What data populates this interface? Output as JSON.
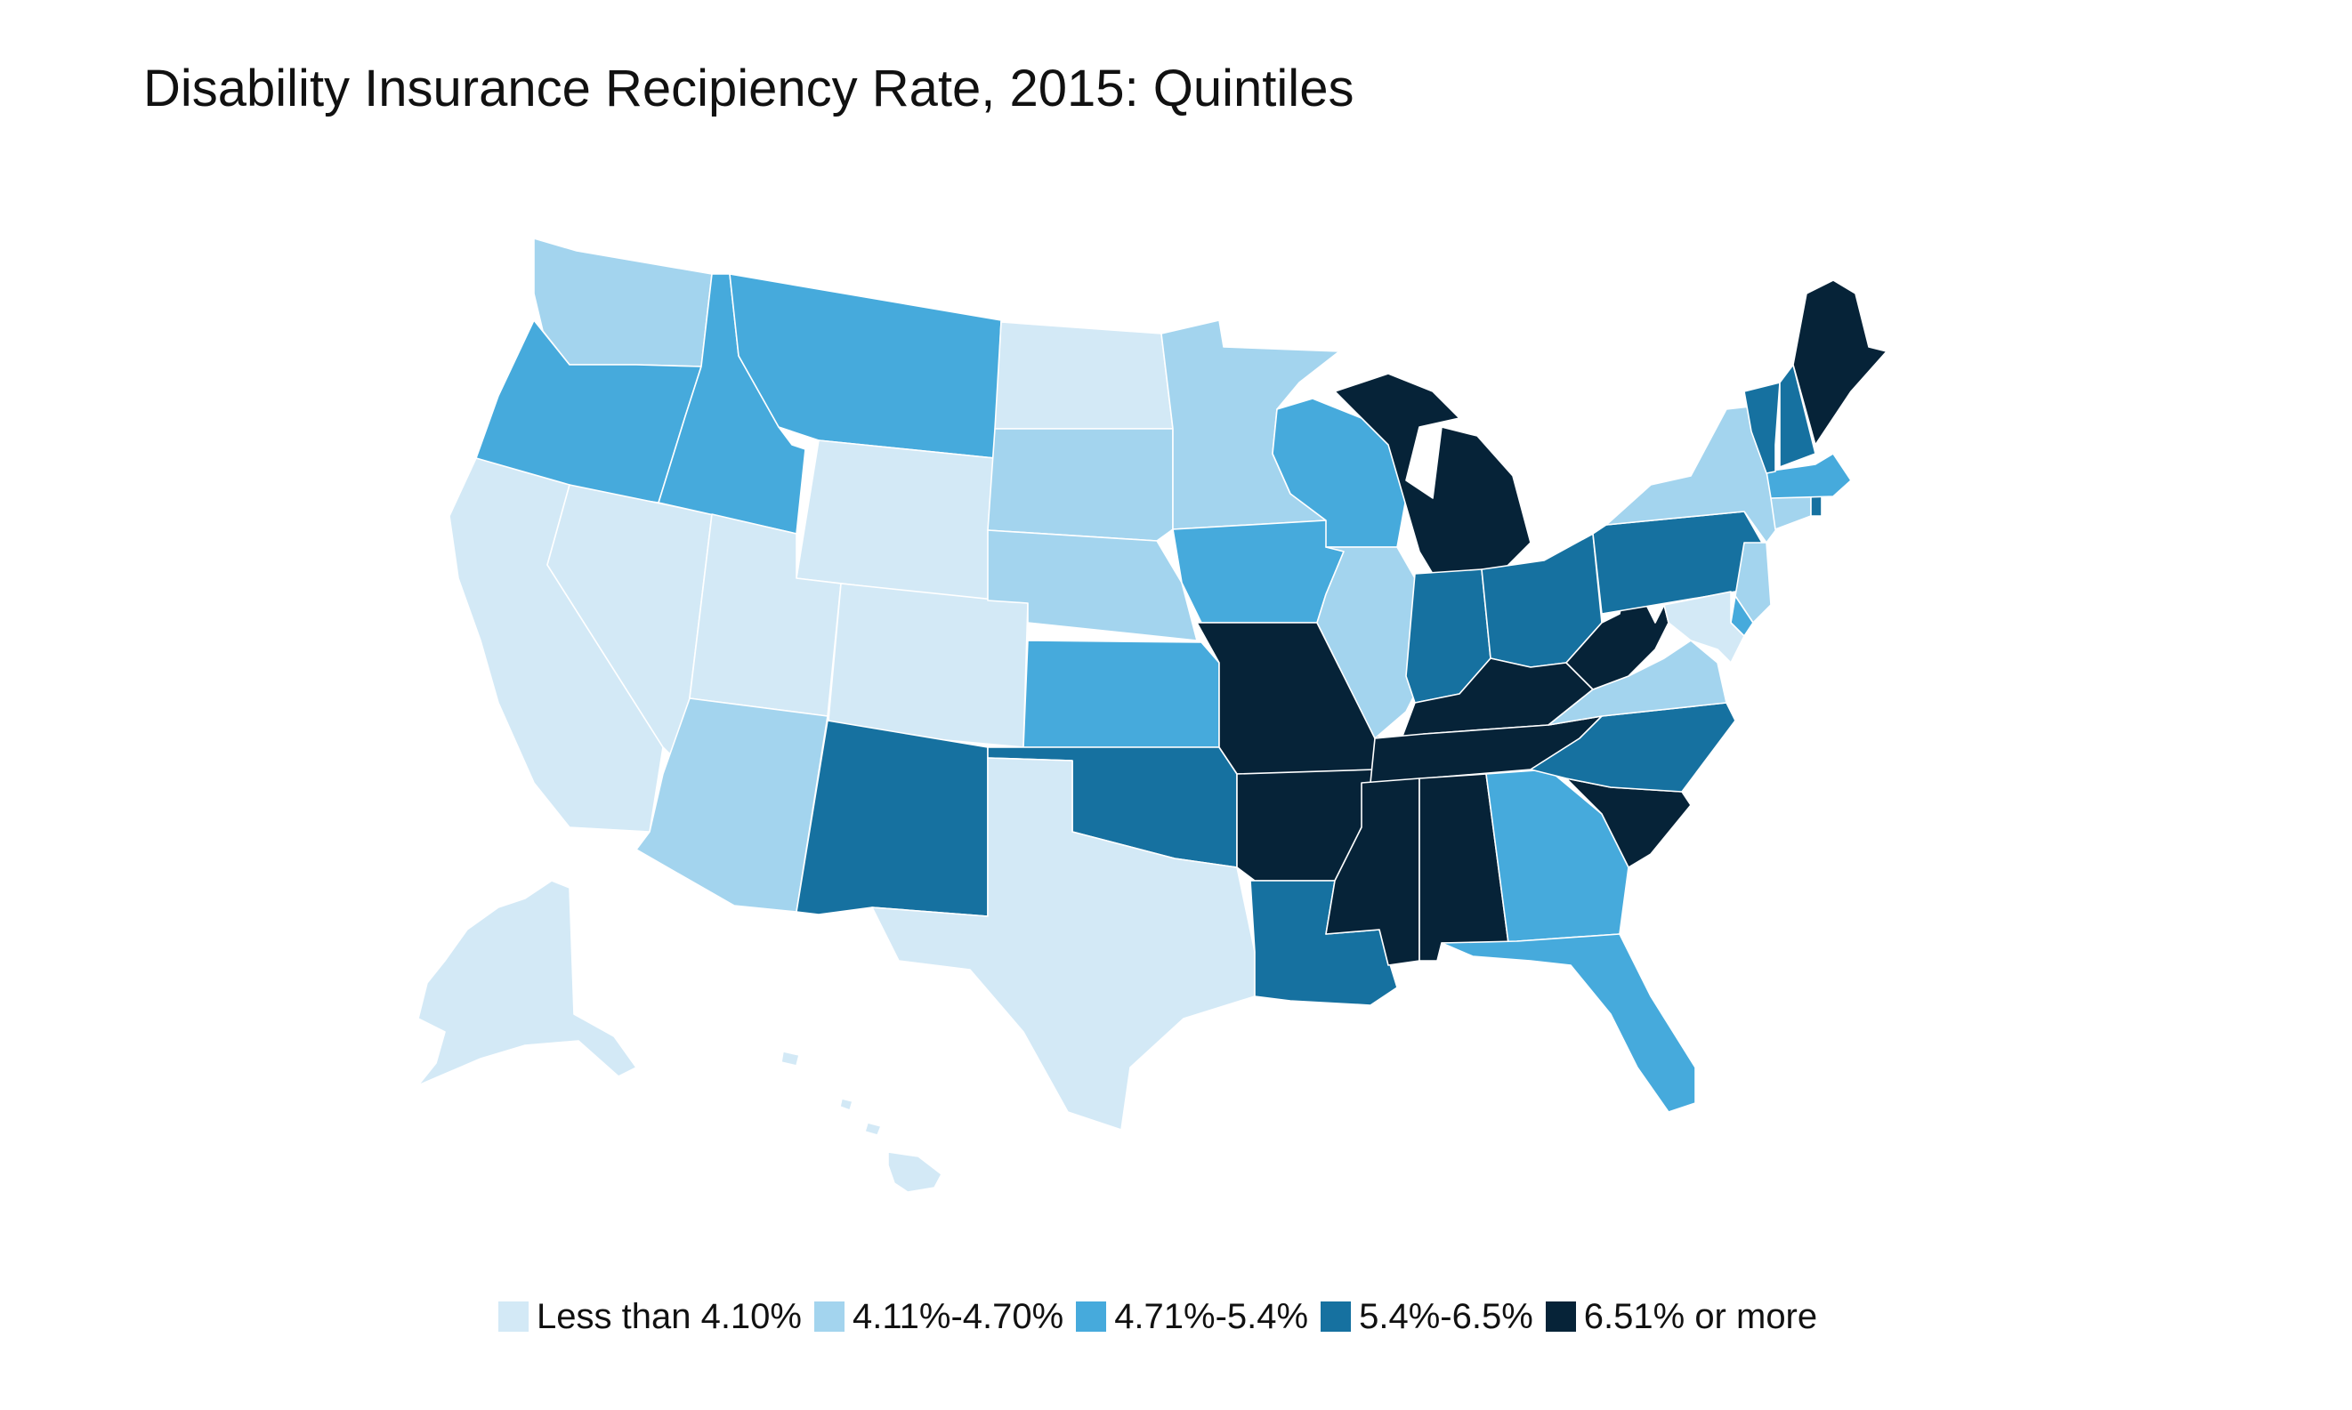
{
  "title": "Disability Insurance Recipiency Rate, 2015: Quintiles",
  "legend": [
    {
      "label": "Less than 4.10%",
      "color": "#d3e9f6"
    },
    {
      "label": "4.11%-4.70%",
      "color": "#a3d4ee"
    },
    {
      "label": "4.71%-5.4%",
      "color": "#46aadc"
    },
    {
      "label": "5.4%-6.5%",
      "color": "#1671a0"
    },
    {
      "label": "6.51% or more",
      "color": "#062338"
    }
  ],
  "states": {
    "Washington": 1,
    "Oregon": 2,
    "California": 0,
    "Nevada": 0,
    "Idaho": 2,
    "Montana": 2,
    "Wyoming": 0,
    "Utah": 0,
    "Arizona": 1,
    "Colorado": 0,
    "New Mexico": 3,
    "North Dakota": 0,
    "South Dakota": 1,
    "Nebraska": 1,
    "Kansas": 2,
    "Oklahoma": 3,
    "Texas": 0,
    "Minnesota": 1,
    "Iowa": 2,
    "Missouri": 4,
    "Arkansas": 4,
    "Louisiana": 3,
    "Wisconsin": 2,
    "Illinois": 1,
    "Michigan": 4,
    "Indiana": 3,
    "Ohio": 3,
    "Kentucky": 4,
    "Tennessee": 4,
    "Mississippi": 4,
    "Alabama": 4,
    "Georgia": 2,
    "Florida": 2,
    "South Carolina": 4,
    "North Carolina": 3,
    "Virginia": 1,
    "West Virginia": 4,
    "Pennsylvania": 3,
    "New York": 1,
    "Maryland": 0,
    "Delaware": 2,
    "New Jersey": 1,
    "Connecticut": 1,
    "Rhode Island": 3,
    "Massachusetts": 2,
    "Vermont": 3,
    "New Hampshire": 3,
    "Maine": 4,
    "Alaska": 0,
    "Hawaii": 0
  }
}
